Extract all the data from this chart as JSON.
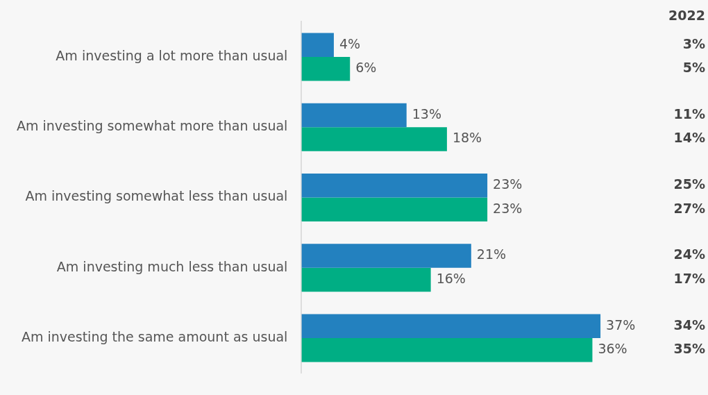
{
  "chart_data": {
    "type": "bar",
    "orientation": "horizontal",
    "categories": [
      "Am investing a lot more than usual",
      "Am investing somewhat more than usual",
      "Am investing somewhat less than usual",
      "Am investing much less than usual",
      "Am investing the same amount as usual"
    ],
    "series": [
      {
        "color": "#2381bf",
        "values": [
          4,
          13,
          23,
          21,
          37
        ],
        "value_labels": [
          "4%",
          "13%",
          "23%",
          "21%",
          "37%"
        ]
      },
      {
        "color": "#00ae84",
        "values": [
          6,
          18,
          23,
          16,
          36
        ],
        "value_labels": [
          "6%",
          "18%",
          "23%",
          "16%",
          "36%"
        ]
      }
    ],
    "tick_labels": "y",
    "grid": false,
    "legend": false,
    "annotations": [
      "2022",
      "3%",
      "5%",
      "11%",
      "14%",
      "25%",
      "27%",
      "24%",
      "17%",
      "34%",
      "35%"
    ]
  }
}
